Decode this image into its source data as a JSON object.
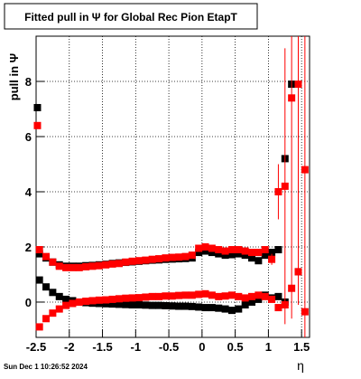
{
  "chart_data": {
    "type": "scatter",
    "title": "Fitted pull in  Ψ  for Global Rec Pion EtapT",
    "y_label": "pull in Ψ",
    "x_label": "η",
    "footer": "Sun Dec  1 10:26:52 2024",
    "xlim": [
      -2.5,
      1.62
    ],
    "ylim": [
      -1.28,
      9.64
    ],
    "xticks": [
      -2.5,
      -2,
      -1.5,
      -1,
      -0.5,
      0,
      0.5,
      1,
      1.5
    ],
    "yticks": [
      0,
      2,
      4,
      6,
      8
    ],
    "grid": true,
    "series": [
      {
        "color": "#000000",
        "x": [
          -2.45,
          -2.35,
          -2.25,
          -2.15,
          -2.05,
          -1.95,
          -1.85,
          -1.75,
          -1.65,
          -1.55,
          -1.45,
          -1.35,
          -1.25,
          -1.15,
          -1.05,
          -0.95,
          -0.85,
          -0.75,
          -0.65,
          -0.55,
          -0.45,
          -0.35,
          -0.25,
          -0.15,
          -0.05,
          0.05,
          0.15,
          0.25,
          0.35,
          0.45,
          0.55,
          0.65,
          0.75,
          0.85,
          0.95,
          1.05,
          1.15,
          1.25,
          1.35,
          1.45,
          1.55
        ],
        "values": [
          1.75,
          1.6,
          1.45,
          1.35,
          1.3,
          1.3,
          1.3,
          1.32,
          1.33,
          1.35,
          1.37,
          1.4,
          1.42,
          1.44,
          1.46,
          1.48,
          1.5,
          1.52,
          1.53,
          1.55,
          1.56,
          1.57,
          1.58,
          1.6,
          1.8,
          1.85,
          1.8,
          1.75,
          1.7,
          1.72,
          1.75,
          1.7,
          1.6,
          1.5,
          1.7,
          1.8,
          1.9,
          5.2,
          7.9,
          1.1,
          null
        ]
      },
      {
        "color": "#000000",
        "x": [
          -2.45,
          -2.35,
          -2.25,
          -2.15,
          -2.05,
          -1.95,
          -1.85,
          -1.75,
          -1.65,
          -1.55,
          -1.45,
          -1.35,
          -1.25,
          -1.15,
          -1.05,
          -0.95,
          -0.85,
          -0.75,
          -0.65,
          -0.55,
          -0.45,
          -0.35,
          -0.25,
          -0.15,
          -0.05,
          0.05,
          0.15,
          0.25,
          0.35,
          0.45,
          0.55,
          0.65,
          0.75,
          0.85,
          0.95,
          1.05,
          1.15,
          1.25,
          1.35,
          1.45,
          1.55
        ],
        "values": [
          0.8,
          0.55,
          0.35,
          0.2,
          0.1,
          0.05,
          0.0,
          -0.02,
          -0.04,
          -0.05,
          -0.06,
          -0.07,
          -0.08,
          -0.09,
          -0.1,
          -0.1,
          -0.11,
          -0.12,
          -0.12,
          -0.13,
          -0.14,
          -0.15,
          -0.15,
          -0.16,
          -0.18,
          -0.2,
          -0.2,
          -0.22,
          -0.25,
          -0.3,
          -0.25,
          -0.1,
          0.0,
          0.1,
          0.25,
          0.15,
          0.2,
          0.0,
          null,
          null,
          null
        ]
      },
      {
        "color": "#ff0000",
        "x": [
          -2.45,
          -2.35,
          -2.25,
          -2.15,
          -2.05,
          -1.95,
          -1.85,
          -1.75,
          -1.65,
          -1.55,
          -1.45,
          -1.35,
          -1.25,
          -1.15,
          -1.05,
          -0.95,
          -0.85,
          -0.75,
          -0.65,
          -0.55,
          -0.45,
          -0.35,
          -0.25,
          -0.15,
          -0.05,
          0.05,
          0.15,
          0.25,
          0.35,
          0.45,
          0.55,
          0.65,
          0.75,
          0.85,
          0.95,
          1.05,
          1.15,
          1.25,
          1.35,
          1.45,
          1.55
        ],
        "values": [
          1.9,
          1.65,
          1.45,
          1.3,
          1.25,
          1.25,
          1.25,
          1.28,
          1.3,
          1.32,
          1.35,
          1.38,
          1.4,
          1.45,
          1.48,
          1.5,
          1.52,
          1.55,
          1.57,
          1.6,
          1.62,
          1.63,
          1.65,
          1.7,
          1.95,
          2.0,
          1.95,
          1.9,
          1.85,
          1.9,
          1.9,
          1.85,
          1.8,
          1.8,
          1.9,
          1.55,
          4.0,
          4.2,
          7.4,
          7.9,
          4.8
        ],
        "errors": [
          0.03,
          0.03,
          0.03,
          0.03,
          0.03,
          0.03,
          0.03,
          0.03,
          0.03,
          0.03,
          0.03,
          0.03,
          0.03,
          0.03,
          0.03,
          0.03,
          0.03,
          0.03,
          0.03,
          0.03,
          0.03,
          0.03,
          0.03,
          0.03,
          0.03,
          0.03,
          0.03,
          0.03,
          0.03,
          0.03,
          0.03,
          0.03,
          0.03,
          0.03,
          0.03,
          0.2,
          1.0,
          5,
          8,
          8,
          8
        ]
      },
      {
        "color": "#ff0000",
        "x": [
          -2.45,
          -2.35,
          -2.25,
          -2.15,
          -2.05,
          -1.95,
          -1.85,
          -1.75,
          -1.65,
          -1.55,
          -1.45,
          -1.35,
          -1.25,
          -1.15,
          -1.05,
          -0.95,
          -0.85,
          -0.75,
          -0.65,
          -0.55,
          -0.45,
          -0.35,
          -0.25,
          -0.15,
          -0.05,
          0.05,
          0.15,
          0.25,
          0.35,
          0.45,
          0.55,
          0.65,
          0.75,
          0.85,
          0.95,
          1.05,
          1.15,
          1.25,
          1.35,
          1.45,
          1.55
        ],
        "values": [
          -0.9,
          -0.6,
          -0.4,
          -0.25,
          -0.12,
          -0.05,
          0.0,
          0.03,
          0.05,
          0.07,
          0.08,
          0.1,
          0.12,
          0.14,
          0.15,
          0.16,
          0.18,
          0.2,
          0.2,
          0.22,
          0.22,
          0.24,
          0.25,
          0.25,
          0.28,
          0.3,
          0.25,
          0.2,
          0.22,
          0.25,
          0.2,
          0.15,
          0.2,
          0.25,
          0.2,
          0.1,
          -0.2,
          -0.1,
          0.5,
          1.1,
          -0.35
        ]
      },
      {
        "color": "#000000",
        "x": [
          -2.48
        ],
        "values": [
          7.05
        ]
      },
      {
        "color": "#ff0000",
        "x": [
          -2.48
        ],
        "values": [
          6.4
        ]
      }
    ]
  }
}
